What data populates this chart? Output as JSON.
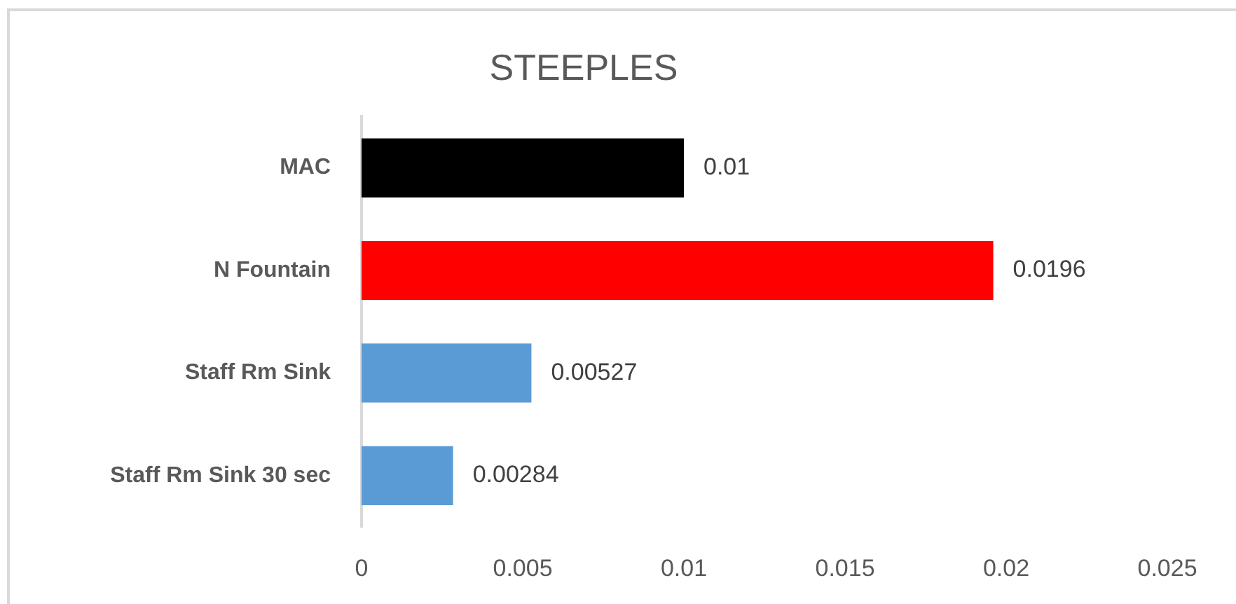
{
  "chart_data": {
    "type": "bar",
    "title": "STEEPLES",
    "orientation": "horizontal",
    "categories": [
      "MAC",
      "N Fountain",
      "Staff Rm Sink",
      "Staff Rm Sink 30 sec"
    ],
    "values": [
      0.01,
      0.0196,
      0.00527,
      0.00284
    ],
    "colors": [
      "#000000",
      "#ff0000",
      "#5b9bd5",
      "#5b9bd5"
    ],
    "xlim": [
      0,
      0.025
    ],
    "xticks": [
      0,
      0.005,
      0.01,
      0.015,
      0.02,
      0.025
    ],
    "data_labels": true
  }
}
